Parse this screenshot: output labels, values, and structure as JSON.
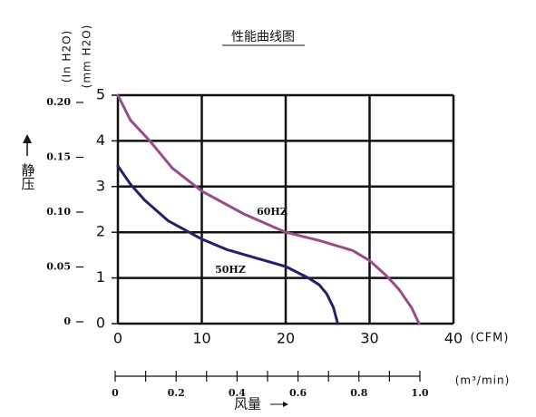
{
  "chart_data": {
    "type": "line",
    "title": "性能曲线图",
    "y_label": "静压",
    "x_label": "风量",
    "y_unit_label": "(mm H2O)",
    "y2_unit_label": "(In H2O)",
    "x_unit_label": "(CFM)",
    "x2_unit_label": "(m³/min)",
    "xlim": [
      0,
      40
    ],
    "xticks": [
      0,
      10,
      20,
      30,
      40
    ],
    "ylim": [
      0,
      5
    ],
    "yticks": [
      0,
      1,
      2,
      3,
      4,
      5
    ],
    "y2lim": [
      0,
      0.2
    ],
    "y2ticks": [
      0,
      0.05,
      {
        "value": 0.1,
        "label": "0.10"
      },
      0.15,
      {
        "value": 0.2,
        "label": "0.20"
      }
    ],
    "x2lim": [
      0,
      1
    ],
    "x2ticks": [
      0,
      0.2,
      0.4,
      0.6,
      0.8,
      {
        "value": 1,
        "label": "1.0"
      }
    ],
    "x2minor": [
      0.1,
      0.3,
      0.5,
      0.7,
      0.9
    ],
    "grid": true,
    "series": [
      {
        "name": "60HZ",
        "color": "#9a4c86",
        "x": [
          0,
          1.5,
          3.8,
          6.5,
          10,
          15,
          20,
          24,
          28,
          30,
          32,
          33.5,
          35,
          35.9
        ],
        "values": [
          5.0,
          4.45,
          4.0,
          3.4,
          2.9,
          2.4,
          2.0,
          1.82,
          1.6,
          1.38,
          1.05,
          0.75,
          0.35,
          0
        ]
      },
      {
        "name": "50HZ",
        "color": "#2a1e6c",
        "x": [
          0,
          1.5,
          3.2,
          6,
          10,
          13,
          16.2,
          20,
          22.7,
          24,
          24.9,
          25.7,
          26.2
        ],
        "values": [
          3.45,
          3.05,
          2.7,
          2.25,
          1.85,
          1.62,
          1.45,
          1.25,
          1.0,
          0.85,
          0.65,
          0.35,
          0
        ]
      }
    ]
  }
}
